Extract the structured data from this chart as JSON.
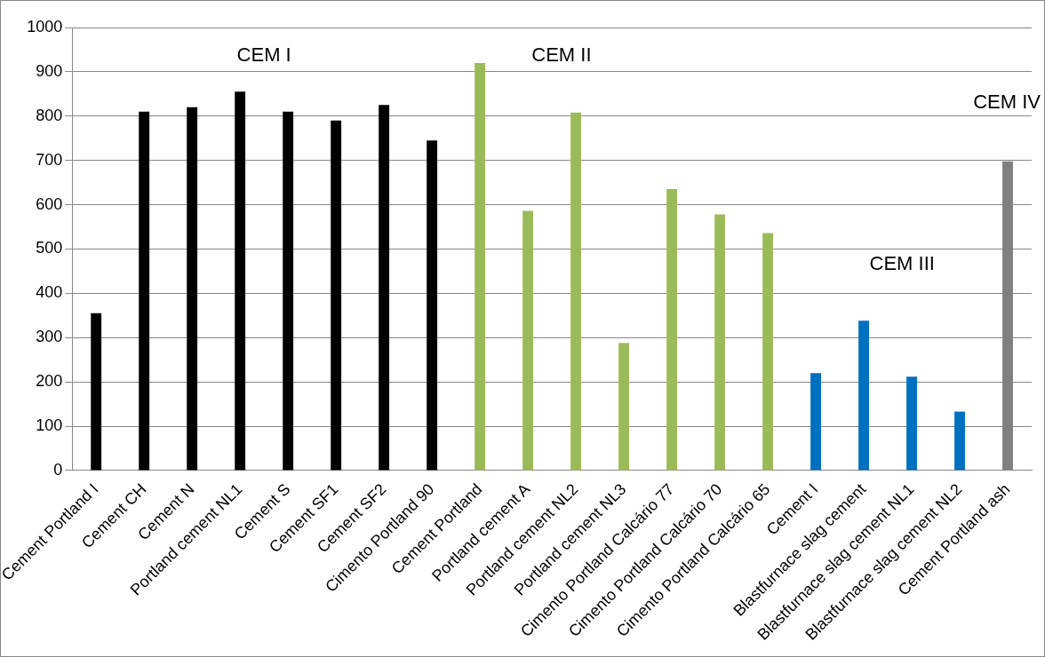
{
  "chart_data": {
    "type": "bar",
    "categories": [
      "Cement Portland I",
      "Cement CH",
      "Cement N",
      "Portland cement NL1",
      "Cement S",
      "Cement SF1",
      "Cement SF2",
      "Cimento Portland 90",
      "Cement Portland",
      "Portland cement A",
      "Portland cement NL2",
      "Portland cement NL3",
      "Cimento Portland Calcário 77",
      "Cimento Portland Calcário 70",
      "Cimento Portland Calcário 65",
      "Cement I",
      "Blastfurnace slag cement",
      "Blastfurnace slag cement NL1",
      "Blastfurnace slag cement NL2",
      "Cement Portland ash"
    ],
    "values": [
      355,
      810,
      820,
      855,
      810,
      790,
      825,
      745,
      920,
      586,
      808,
      288,
      635,
      578,
      536,
      220,
      338,
      212,
      133,
      698
    ],
    "colors": [
      "#000000",
      "#000000",
      "#000000",
      "#000000",
      "#000000",
      "#000000",
      "#000000",
      "#000000",
      "#9bbb59",
      "#9bbb59",
      "#9bbb59",
      "#9bbb59",
      "#9bbb59",
      "#9bbb59",
      "#9bbb59",
      "#0070c0",
      "#0070c0",
      "#0070c0",
      "#0070c0",
      "#808080"
    ],
    "ylim": [
      0,
      1000
    ],
    "yticks": [
      0,
      100,
      200,
      300,
      400,
      500,
      600,
      700,
      800,
      900,
      1000
    ],
    "grid": "y",
    "legend": false,
    "annotations": [
      "CEM I",
      "CEM II",
      "CEM III",
      "CEM IV"
    ]
  }
}
